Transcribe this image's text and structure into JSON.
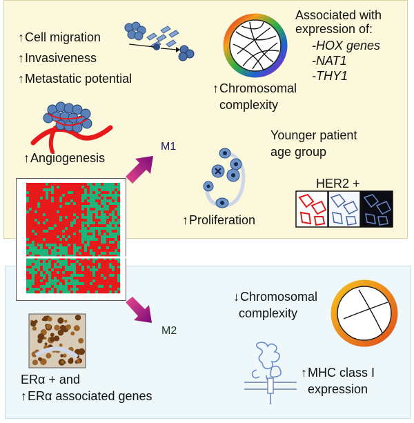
{
  "m1_panel": {
    "label": "M1",
    "cell_migration": "Cell migration",
    "invasiveness": "Invasiveness",
    "metastatic": "Metastatic potential",
    "chromosomal_1": "Chromosomal",
    "chromosomal_2": "complexity",
    "assoc_title_1": "Associated with",
    "assoc_title_2": "expression of:",
    "genes": [
      "-HOX genes",
      "-NAT1",
      "-THY1"
    ],
    "angiogenesis": "Angiogenesis",
    "younger_1": "Younger patient",
    "younger_2": "age group",
    "proliferation": "Proliferation",
    "her2": "HER2 +"
  },
  "m2_panel": {
    "label": "M2",
    "chromosomal_1": "Chromosomal",
    "chromosomal_2": "complexity",
    "mhc_1": "MHC class I",
    "mhc_2": "expression",
    "er_1": "ERα + and",
    "er_2": "ERα associated genes"
  },
  "colors": {
    "heatmap_red": "#e8191b",
    "heatmap_green": "#1fb57a",
    "arrow": "#b0127e"
  }
}
